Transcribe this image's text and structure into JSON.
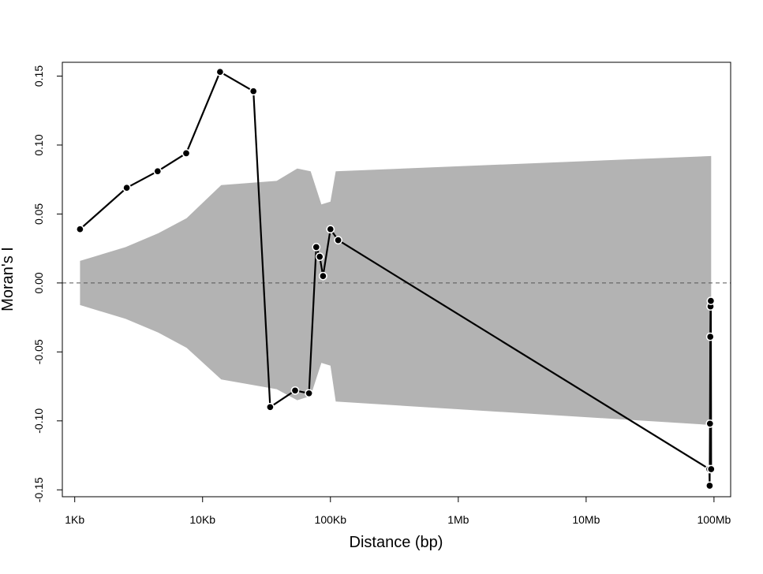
{
  "chart_data": {
    "type": "line",
    "title": "",
    "xlabel": "Distance (bp)",
    "ylabel": "Moran's I",
    "x_scale": "log10",
    "x_ticks": [
      {
        "value": 1000,
        "label": "1Kb"
      },
      {
        "value": 10000,
        "label": "10Kb"
      },
      {
        "value": 100000,
        "label": "100Kb"
      },
      {
        "value": 1000000,
        "label": "1Mb"
      },
      {
        "value": 10000000,
        "label": "10Mb"
      },
      {
        "value": 100000000,
        "label": "100Mb"
      }
    ],
    "y_ticks": [
      {
        "value": -0.15,
        "label": "-0.15"
      },
      {
        "value": -0.1,
        "label": "-0.10"
      },
      {
        "value": -0.05,
        "label": "-0.05"
      },
      {
        "value": 0.0,
        "label": "0.00"
      },
      {
        "value": 0.05,
        "label": "0.05"
      },
      {
        "value": 0.1,
        "label": "0.10"
      },
      {
        "value": 0.15,
        "label": "0.15"
      }
    ],
    "ylim": [
      -0.155,
      0.16
    ],
    "xlim": [
      800,
      135000000
    ],
    "reference_line": 0,
    "envelope": {
      "x": [
        1100,
        2500,
        4500,
        7500,
        14000,
        38000,
        55000,
        70000,
        85000,
        100000,
        110000,
        95000000
      ],
      "upper": [
        0.016,
        0.026,
        0.036,
        0.047,
        0.071,
        0.074,
        0.083,
        0.081,
        0.057,
        0.059,
        0.081,
        0.092
      ],
      "lower": [
        -0.016,
        -0.026,
        -0.036,
        -0.047,
        -0.07,
        -0.077,
        -0.085,
        -0.082,
        -0.058,
        -0.06,
        -0.086,
        -0.103
      ],
      "color": "#b3b3b3"
    },
    "series": [
      {
        "x": [
          1100,
          2550,
          4450,
          7450,
          13700,
          25000,
          33800,
          52900,
          68000,
          77500,
          82500,
          87500,
          100000,
          115000,
          92000000,
          92500000,
          93000000,
          93500000,
          94000000,
          94500000,
          95000000
        ],
        "y": [
          0.039,
          0.069,
          0.081,
          0.094,
          0.153,
          0.139,
          -0.09,
          -0.078,
          -0.08,
          0.026,
          0.019,
          0.005,
          0.039,
          0.031,
          -0.135,
          -0.147,
          -0.102,
          -0.039,
          -0.017,
          -0.013,
          -0.135
        ],
        "color": "#000000"
      }
    ]
  }
}
